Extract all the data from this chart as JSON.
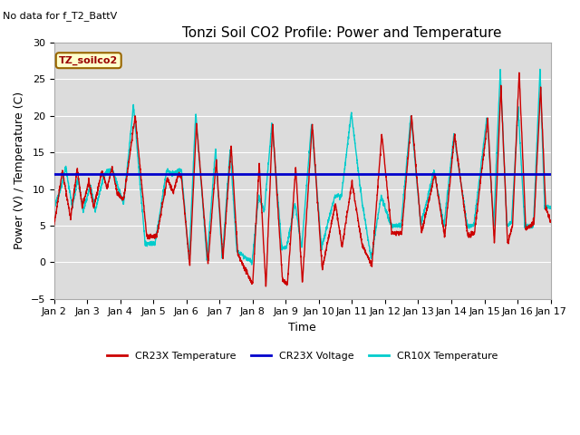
{
  "title": "Tonzi Soil CO2 Profile: Power and Temperature",
  "no_data_text": "No data for f_T2_BattV",
  "annotation_text": "TZ_soilco2",
  "xlabel": "Time",
  "ylabel": "Power (V) / Temperature (C)",
  "xlim": [
    0,
    15
  ],
  "ylim": [
    -5,
    30
  ],
  "yticks": [
    -5,
    0,
    5,
    10,
    15,
    20,
    25,
    30
  ],
  "xtick_labels": [
    "Jan 2",
    "Jan 3",
    "Jan 4",
    "Jan 5",
    "Jan 6",
    "Jan 7",
    "Jan 8",
    "Jan 9",
    "Jan 10",
    "Jan 11",
    "Jan 12",
    "Jan 13",
    "Jan 14",
    "Jan 15",
    "Jan 16",
    "Jan 17"
  ],
  "voltage_level": 12.0,
  "cr23x_color": "#cc0000",
  "cr10x_color": "#00cccc",
  "voltage_color": "#0000cc",
  "bg_color": "#dcdcdc",
  "legend_labels": [
    "CR23X Temperature",
    "CR23X Voltage",
    "CR10X Temperature"
  ],
  "annotation_bg": "#ffffcc",
  "annotation_border": "#996600",
  "title_fontsize": 11,
  "axis_fontsize": 9,
  "tick_fontsize": 8
}
